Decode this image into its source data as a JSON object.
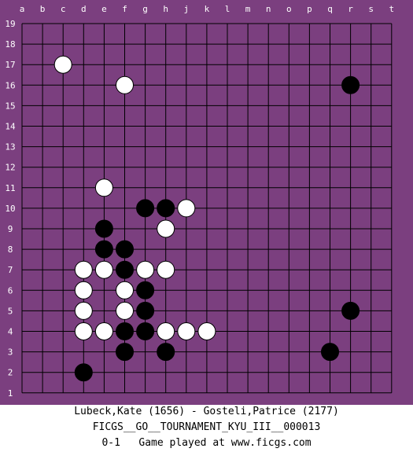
{
  "colors": {
    "board": "#7b3f7f",
    "page": "#ffffff",
    "line": "#000000",
    "black_stone": "#000000",
    "white_stone": "#ffffff"
  },
  "board": {
    "size": 19,
    "columns": [
      "a",
      "b",
      "c",
      "d",
      "e",
      "f",
      "g",
      "h",
      "j",
      "k",
      "l",
      "m",
      "n",
      "o",
      "p",
      "q",
      "r",
      "s",
      "t"
    ],
    "rows": [
      "19",
      "18",
      "17",
      "16",
      "15",
      "14",
      "13",
      "12",
      "11",
      "10",
      "9",
      "8",
      "7",
      "6",
      "5",
      "4",
      "3",
      "2",
      "1"
    ]
  },
  "stones": {
    "black": [
      "r16",
      "g10",
      "h10",
      "e9",
      "e8",
      "f8",
      "f7",
      "g6",
      "g5",
      "f4",
      "g4",
      "f3",
      "h3",
      "q3",
      "r5",
      "d2"
    ],
    "white": [
      "c17",
      "f16",
      "e11",
      "j10",
      "h9",
      "d7",
      "e7",
      "g7",
      "h7",
      "d6",
      "f6",
      "d5",
      "f5",
      "d4",
      "e4",
      "h4",
      "j4",
      "k4"
    ]
  },
  "footer": {
    "players": "Lubeck,Kate (1656) - Gosteli,Patrice (2177)",
    "event": "FICGS__GO__TOURNAMENT_KYU_III__000013",
    "result_line": "0-1   Game played at www.ficgs.com"
  }
}
